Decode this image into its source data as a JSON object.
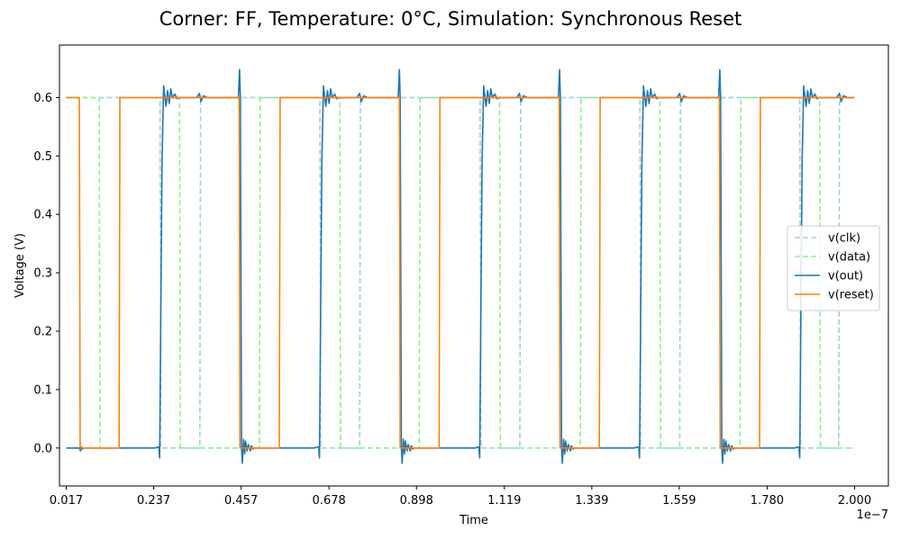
{
  "chart_data": {
    "type": "line",
    "title": "Corner: FF, Temperature: 0°C, Simulation: Synchronous Reset",
    "xlabel": "Time",
    "ylabel": "Voltage (V)",
    "x_offset_label": "1e−7",
    "xlim": [
      0.0,
      2.085e-07
    ],
    "ylim": [
      -0.065,
      0.69
    ],
    "x_ticks": [
      1.7e-09,
      2.37e-08,
      4.57e-08,
      6.78e-08,
      8.98e-08,
      1.119e-07,
      1.339e-07,
      1.559e-07,
      1.78e-07,
      2e-07
    ],
    "x_tick_labels": [
      "0.017",
      "0.237",
      "0.457",
      "0.678",
      "0.898",
      "1.119",
      "1.339",
      "1.559",
      "1.780",
      "2.000"
    ],
    "y_ticks": [
      0.0,
      0.1,
      0.2,
      0.3,
      0.4,
      0.5,
      0.6
    ],
    "y_tick_labels": [
      "0.0",
      "0.1",
      "0.2",
      "0.3",
      "0.4",
      "0.5",
      "0.6"
    ],
    "grid": false,
    "legend_position": "center-right",
    "series": [
      {
        "name": "v(clk)",
        "color": "#a6cee3",
        "dash": "dashed",
        "x": [
          1.7e-09,
          2.53e-08,
          2.55e-08,
          3.53e-08,
          3.55e-08,
          6.55e-08,
          6.57e-08,
          7.55e-08,
          7.57e-08,
          1.058e-07,
          1.06e-07,
          1.158e-07,
          1.16e-07,
          1.46e-07,
          1.462e-07,
          1.56e-07,
          1.562e-07,
          1.862e-07,
          1.864e-07,
          1.96e-07,
          1.962e-07,
          2e-07
        ],
        "y": [
          0.6,
          0.6,
          0.0,
          0.0,
          0.6,
          0.6,
          0.0,
          0.0,
          0.6,
          0.6,
          0.0,
          0.0,
          0.6,
          0.6,
          0.0,
          0.0,
          0.6,
          0.6,
          0.0,
          0.0,
          0.6,
          0.6
        ]
      },
      {
        "name": "v(data)",
        "color": "#90ee90",
        "dash": "dashed",
        "x": [
          1.7e-09,
          1e-08,
          1.02e-08,
          1.5e-08,
          1.52e-08,
          3.02e-08,
          3.04e-08,
          5.03e-08,
          5.05e-08,
          7.05e-08,
          7.07e-08,
          9.05e-08,
          9.07e-08,
          1.107e-07,
          1.109e-07,
          1.31e-07,
          1.312e-07,
          1.51e-07,
          1.512e-07,
          1.712e-07,
          1.714e-07,
          1.912e-07,
          1.914e-07,
          2e-07
        ],
        "y": [
          0.6,
          0.6,
          0.0,
          0.0,
          0.6,
          0.6,
          0.0,
          0.0,
          0.6,
          0.6,
          0.0,
          0.0,
          0.6,
          0.6,
          0.0,
          0.0,
          0.6,
          0.6,
          0.0,
          0.0,
          0.6,
          0.6,
          0.0,
          0.0
        ]
      },
      {
        "name": "v(out)",
        "color": "#1f77b4",
        "dash": "solid",
        "x": [
          1.7e-09,
          5e-09,
          5.3e-09,
          5.5e-09,
          5.8e-09,
          6e-09,
          1.2e-08,
          2.4e-08,
          2.5e-08,
          2.52e-08,
          2.58e-08,
          2.62e-08,
          2.68e-08,
          2.72e-08,
          2.76e-08,
          2.8e-08,
          2.84e-08,
          2.9e-08,
          2.96e-08,
          3e-08,
          3.2e-08,
          3.45e-08,
          3.52e-08,
          3.56e-08,
          3.62e-08,
          3.72e-08,
          4e-08,
          4.5e-08,
          4.53e-08,
          4.55e-08,
          4.58e-08,
          4.6e-08,
          4.63e-08,
          4.66e-08,
          4.68e-08,
          4.72e-08,
          4.75e-08,
          4.78e-08,
          4.8e-08,
          4.83e-08,
          4.86e-08,
          4.9e-08,
          5e-08,
          6.4e-08,
          6.52e-08,
          6.54e-08,
          6.6e-08,
          6.64e-08,
          6.7e-08,
          6.74e-08,
          6.78e-08,
          6.82e-08,
          6.86e-08,
          6.92e-08,
          6.98e-08,
          7.02e-08,
          7.2e-08,
          7.48e-08,
          7.55e-08,
          7.59e-08,
          7.65e-08,
          7.75e-08,
          8e-08,
          8.52e-08,
          8.55e-08,
          8.57e-08,
          8.6e-08,
          8.62e-08,
          8.65e-08,
          8.68e-08,
          8.7e-08,
          8.74e-08,
          8.77e-08,
          8.8e-08,
          8.82e-08,
          8.85e-08,
          8.88e-08,
          8.92e-08,
          9e-08,
          1.045e-07,
          1.055e-07,
          1.057e-07,
          1.063e-07,
          1.067e-07,
          1.073e-07,
          1.077e-07,
          1.081e-07,
          1.085e-07,
          1.089e-07,
          1.095e-07,
          1.101e-07,
          1.105e-07,
          1.125e-07,
          1.15e-07,
          1.157e-07,
          1.161e-07,
          1.167e-07,
          1.177e-07,
          1.2e-07,
          1.255e-07,
          1.258e-07,
          1.26e-07,
          1.263e-07,
          1.265e-07,
          1.268e-07,
          1.271e-07,
          1.273e-07,
          1.277e-07,
          1.28e-07,
          1.283e-07,
          1.285e-07,
          1.288e-07,
          1.291e-07,
          1.295e-07,
          1.31e-07,
          1.445e-07,
          1.457e-07,
          1.459e-07,
          1.465e-07,
          1.469e-07,
          1.475e-07,
          1.479e-07,
          1.483e-07,
          1.487e-07,
          1.491e-07,
          1.497e-07,
          1.503e-07,
          1.507e-07,
          1.525e-07,
          1.553e-07,
          1.56e-07,
          1.564e-07,
          1.57e-07,
          1.58e-07,
          1.61e-07,
          1.658e-07,
          1.661e-07,
          1.663e-07,
          1.666e-07,
          1.668e-07,
          1.671e-07,
          1.674e-07,
          1.676e-07,
          1.68e-07,
          1.683e-07,
          1.686e-07,
          1.688e-07,
          1.691e-07,
          1.694e-07,
          1.698e-07,
          1.71e-07,
          1.848e-07,
          1.86e-07,
          1.862e-07,
          1.868e-07,
          1.872e-07,
          1.878e-07,
          1.882e-07,
          1.886e-07,
          1.89e-07,
          1.894e-07,
          1.9e-07,
          1.906e-07,
          1.91e-07,
          1.93e-07,
          1.955e-07,
          1.962e-07,
          1.966e-07,
          1.972e-07,
          1.982e-07,
          2e-07
        ],
        "y": [
          0.0,
          0.0,
          -0.005,
          0.002,
          -0.002,
          0.0,
          0.0,
          0.0,
          0.002,
          -0.017,
          0.49,
          0.62,
          0.585,
          0.612,
          0.59,
          0.615,
          0.6,
          0.606,
          0.598,
          0.6,
          0.6,
          0.6,
          0.607,
          0.593,
          0.603,
          0.6,
          0.6,
          0.6,
          0.648,
          0.6,
          0.0,
          -0.026,
          0.015,
          -0.01,
          0.012,
          -0.005,
          0.006,
          0.0,
          -0.005,
          0.004,
          -0.002,
          0.0,
          0.0,
          0.0,
          0.002,
          -0.017,
          0.49,
          0.62,
          0.585,
          0.612,
          0.59,
          0.615,
          0.6,
          0.606,
          0.598,
          0.6,
          0.6,
          0.6,
          0.607,
          0.593,
          0.603,
          0.6,
          0.6,
          0.6,
          0.648,
          0.6,
          0.0,
          -0.026,
          0.015,
          -0.01,
          0.012,
          -0.005,
          0.006,
          0.0,
          -0.005,
          0.004,
          -0.002,
          0.0,
          0.0,
          0.0,
          0.002,
          -0.017,
          0.49,
          0.62,
          0.585,
          0.612,
          0.59,
          0.615,
          0.6,
          0.606,
          0.598,
          0.6,
          0.6,
          0.6,
          0.607,
          0.593,
          0.603,
          0.6,
          0.6,
          0.6,
          0.648,
          0.6,
          0.0,
          -0.026,
          0.015,
          -0.01,
          0.012,
          -0.005,
          0.006,
          0.0,
          -0.005,
          0.004,
          -0.002,
          0.0,
          0.0,
          0.0,
          0.002,
          -0.017,
          0.49,
          0.62,
          0.585,
          0.612,
          0.59,
          0.615,
          0.6,
          0.606,
          0.598,
          0.6,
          0.6,
          0.6,
          0.607,
          0.593,
          0.603,
          0.6,
          0.6,
          0.6,
          0.648,
          0.6,
          0.0,
          -0.026,
          0.015,
          -0.01,
          0.012,
          -0.005,
          0.006,
          0.0,
          -0.005,
          0.004,
          -0.002,
          0.0,
          0.0,
          0.0,
          0.002,
          -0.017,
          0.49,
          0.62,
          0.585,
          0.612,
          0.59,
          0.615,
          0.6,
          0.606,
          0.598,
          0.6,
          0.6,
          0.6,
          0.607,
          0.593,
          0.603,
          0.6,
          0.6
        ]
      },
      {
        "name": "v(reset)",
        "color": "#ff7f0e",
        "dash": "solid",
        "x": [
          1.7e-09,
          5e-09,
          5.2e-09,
          1.5e-08,
          1.52e-08,
          4.52e-08,
          4.54e-08,
          5.53e-08,
          5.55e-08,
          8.55e-08,
          8.57e-08,
          9.55e-08,
          9.57e-08,
          1.257e-07,
          1.259e-07,
          1.358e-07,
          1.36e-07,
          1.66e-07,
          1.662e-07,
          1.761e-07,
          1.763e-07,
          2e-07
        ],
        "y": [
          0.6,
          0.6,
          0.0,
          0.0,
          0.6,
          0.6,
          0.0,
          0.0,
          0.6,
          0.6,
          0.0,
          0.0,
          0.6,
          0.6,
          0.0,
          0.0,
          0.6,
          0.6,
          0.0,
          0.0,
          0.6,
          0.6
        ]
      }
    ]
  }
}
